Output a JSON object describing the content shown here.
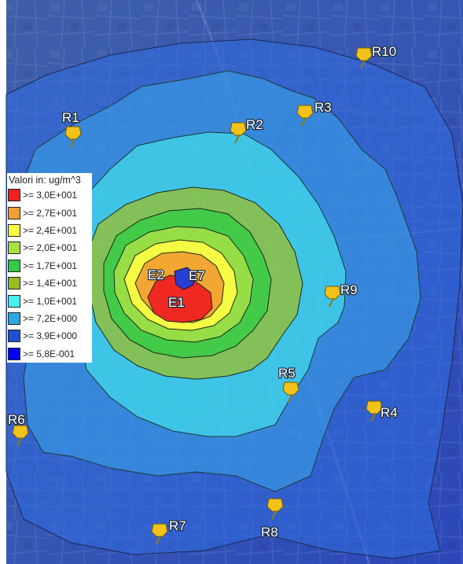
{
  "legend": {
    "title": "Valori in: ug/m^3",
    "items": [
      {
        "label": ">= 3,0E+001",
        "color": "#ee2222"
      },
      {
        "label": ">= 2,7E+001",
        "color": "#f0a030"
      },
      {
        "label": ">= 2,4E+001",
        "color": "#ffff44"
      },
      {
        "label": ">= 2,0E+001",
        "color": "#a8e040"
      },
      {
        "label": ">= 1,7E+001",
        "color": "#33cc44"
      },
      {
        "label": ">= 1,4E+001",
        "color": "#99bb22"
      },
      {
        "label": ">= 1,0E+001",
        "color": "#44f0f0"
      },
      {
        "label": ">= 7,2E+000",
        "color": "#2aa8e0"
      },
      {
        "label": ">= 3,9E+000",
        "color": "#2050d0"
      },
      {
        "label": ">= 5,8E-001",
        "color": "#0000ff"
      }
    ]
  },
  "receptors": [
    "R1",
    "R2",
    "R3",
    "R4",
    "R5",
    "R6",
    "R7",
    "R8",
    "R9",
    "R10"
  ],
  "emitters": [
    "E1",
    "E2",
    "E7"
  ]
}
